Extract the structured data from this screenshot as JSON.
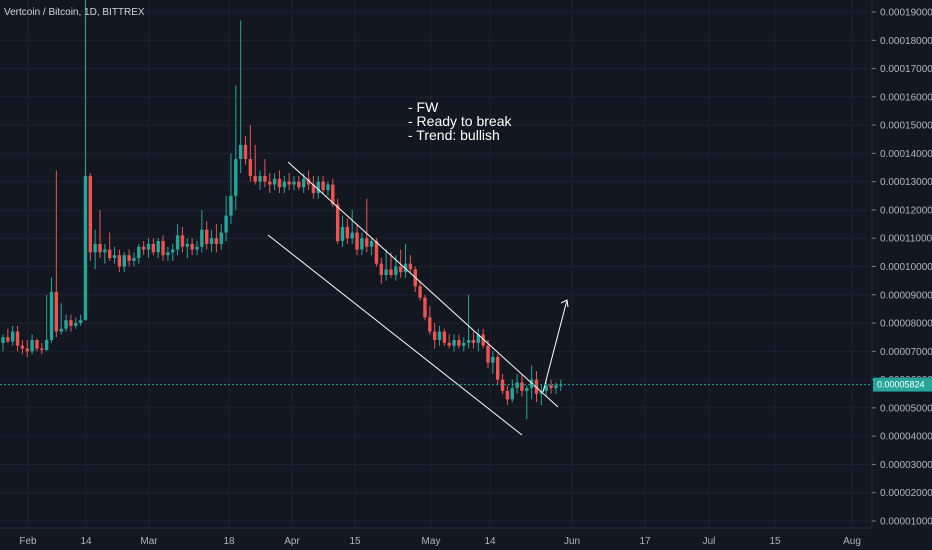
{
  "title": "Vertcoin / Bitcoin, 1D, BITTREX",
  "notes": [
    "- FW",
    "- Ready to break",
    "- Trend: bullish"
  ],
  "colors": {
    "up": "#26a69a",
    "down": "#ef5350",
    "background": "#131722",
    "grid": "#1e2230",
    "line": "#ffffff",
    "price_line": "#26a69a"
  },
  "chart_data": {
    "type": "candlestick",
    "title": "Vertcoin / Bitcoin, 1D, BITTREX",
    "ylim": [
      9e-06,
      0.000195
    ],
    "y_ticks": [
      "0.00001000",
      "0.00002000",
      "0.00003000",
      "0.00004000",
      "0.00005000",
      "0.00006000",
      "0.00007000",
      "0.00008000",
      "0.00009000",
      "0.00010000",
      "0.00011000",
      "0.00012000",
      "0.00013000",
      "0.00014000",
      "0.00015000",
      "0.00016000",
      "0.00017000",
      "0.00018000",
      "0.00019000"
    ],
    "x_ticks": [
      "Feb",
      "14",
      "Mar",
      "18",
      "Apr",
      "15",
      "May",
      "14",
      "Jun",
      "17",
      "Jul",
      "15",
      "Aug"
    ],
    "current_price": "0.00005824",
    "grid": true,
    "candles": [
      {
        "date": "Jan 29",
        "o": 7.3e-05,
        "h": 7.6e-05,
        "l": 7e-05,
        "c": 7.5e-05
      },
      {
        "date": "Jan 30",
        "o": 7.5e-05,
        "h": 7.8e-05,
        "l": 7.3e-05,
        "c": 7.35e-05
      },
      {
        "date": "Jan 31",
        "o": 7.35e-05,
        "h": 7.9e-05,
        "l": 7.2e-05,
        "c": 7.7e-05
      },
      {
        "date": "Feb 1",
        "o": 7.7e-05,
        "h": 7.9e-05,
        "l": 7e-05,
        "c": 7.2e-05
      },
      {
        "date": "Feb 2",
        "o": 7.2e-05,
        "h": 7.4e-05,
        "l": 6.9e-05,
        "c": 7.1e-05
      },
      {
        "date": "Feb 3",
        "o": 7.1e-05,
        "h": 7.4e-05,
        "l": 6.8e-05,
        "c": 7e-05
      },
      {
        "date": "Feb 4",
        "o": 7e-05,
        "h": 7.6e-05,
        "l": 6.9e-05,
        "c": 7.4e-05
      },
      {
        "date": "Feb 5",
        "o": 7.4e-05,
        "h": 7.45e-05,
        "l": 7e-05,
        "c": 7.1e-05
      },
      {
        "date": "Feb 6",
        "o": 7.1e-05,
        "h": 7.3e-05,
        "l": 6.9e-05,
        "c": 7.05e-05
      },
      {
        "date": "Feb 7",
        "o": 7.05e-05,
        "h": 9e-05,
        "l": 7e-05,
        "c": 7.4e-05
      },
      {
        "date": "Feb 8",
        "o": 7.4e-05,
        "h": 9.6e-05,
        "l": 7.3e-05,
        "c": 9.1e-05
      },
      {
        "date": "Feb 9",
        "o": 9.1e-05,
        "h": 0.000134,
        "l": 7.5e-05,
        "c": 7.7e-05
      },
      {
        "date": "Feb 10",
        "o": 7.7e-05,
        "h": 8.7e-05,
        "l": 7.6e-05,
        "c": 7.8e-05
      },
      {
        "date": "Feb 11",
        "o": 7.8e-05,
        "h": 8.3e-05,
        "l": 7.7e-05,
        "c": 8.1e-05
      },
      {
        "date": "Feb 12",
        "o": 8.1e-05,
        "h": 8.3e-05,
        "l": 7.7e-05,
        "c": 7.9e-05
      },
      {
        "date": "Feb 13",
        "o": 7.9e-05,
        "h": 8.2e-05,
        "l": 7.8e-05,
        "c": 8e-05
      },
      {
        "date": "Feb 14",
        "o": 8e-05,
        "h": 8.3e-05,
        "l": 7.9e-05,
        "c": 8.1e-05
      },
      {
        "date": "Feb 15",
        "o": 8.1e-05,
        "h": 0.000196,
        "l": 8.1e-05,
        "c": 0.000132
      },
      {
        "date": "Feb 16",
        "o": 0.000132,
        "h": 0.000133,
        "l": 0.000102,
        "c": 0.000105
      },
      {
        "date": "Feb 17",
        "o": 0.000105,
        "h": 0.000113,
        "l": 9.9e-05,
        "c": 0.000108
      },
      {
        "date": "Feb 18",
        "o": 0.000108,
        "h": 0.00012,
        "l": 0.000103,
        "c": 0.000105
      },
      {
        "date": "Feb 19",
        "o": 0.000105,
        "h": 0.000108,
        "l": 0.000101,
        "c": 0.000106
      },
      {
        "date": "Feb 20",
        "o": 0.000106,
        "h": 0.000112,
        "l": 0.000102,
        "c": 0.000103
      },
      {
        "date": "Feb 21",
        "o": 0.000103,
        "h": 0.000107,
        "l": 0.000101,
        "c": 0.000104
      },
      {
        "date": "Feb 22",
        "o": 0.000104,
        "h": 0.000106,
        "l": 9.8e-05,
        "c": 0.0001
      },
      {
        "date": "Feb 23",
        "o": 0.0001,
        "h": 0.000105,
        "l": 9.8e-05,
        "c": 0.000104
      },
      {
        "date": "Feb 24",
        "o": 0.000104,
        "h": 0.000106,
        "l": 0.0001,
        "c": 0.000102
      },
      {
        "date": "Feb 25",
        "o": 0.000102,
        "h": 0.000105,
        "l": 0.0001,
        "c": 0.000103
      },
      {
        "date": "Feb 26",
        "o": 0.000103,
        "h": 0.000108,
        "l": 0.000101,
        "c": 0.000107
      },
      {
        "date": "Feb 27",
        "o": 0.000107,
        "h": 0.000109,
        "l": 0.000104,
        "c": 0.000106
      },
      {
        "date": "Feb 28",
        "o": 0.000106,
        "h": 0.00011,
        "l": 0.000103,
        "c": 0.000108
      },
      {
        "date": "Mar 1",
        "o": 0.000108,
        "h": 0.00011,
        "l": 0.000104,
        "c": 0.000105
      },
      {
        "date": "Mar 2",
        "o": 0.000105,
        "h": 0.00011,
        "l": 0.000103,
        "c": 0.000109
      },
      {
        "date": "Mar 3",
        "o": 0.000109,
        "h": 0.000111,
        "l": 0.000102,
        "c": 0.000104
      },
      {
        "date": "Mar 4",
        "o": 0.000104,
        "h": 0.000107,
        "l": 0.000102,
        "c": 0.000105
      },
      {
        "date": "Mar 5",
        "o": 0.000105,
        "h": 0.000108,
        "l": 0.000102,
        "c": 0.000106
      },
      {
        "date": "Mar 6",
        "o": 0.000106,
        "h": 0.000115,
        "l": 0.000104,
        "c": 0.000111
      },
      {
        "date": "Mar 7",
        "o": 0.000111,
        "h": 0.000114,
        "l": 0.000105,
        "c": 0.000107
      },
      {
        "date": "Mar 8",
        "o": 0.000107,
        "h": 0.00011,
        "l": 0.000103,
        "c": 0.000108
      },
      {
        "date": "Mar 9",
        "o": 0.000108,
        "h": 0.00011,
        "l": 0.000104,
        "c": 0.000106
      },
      {
        "date": "Mar 10",
        "o": 0.000106,
        "h": 0.000109,
        "l": 0.000104,
        "c": 0.000107
      },
      {
        "date": "Mar 11",
        "o": 0.000107,
        "h": 0.00012,
        "l": 0.000105,
        "c": 0.000113
      },
      {
        "date": "Mar 12",
        "o": 0.000113,
        "h": 0.000116,
        "l": 0.000106,
        "c": 0.000108
      },
      {
        "date": "Mar 13",
        "o": 0.000108,
        "h": 0.000113,
        "l": 0.000105,
        "c": 0.00011
      },
      {
        "date": "Mar 14",
        "o": 0.00011,
        "h": 0.000115,
        "l": 0.000105,
        "c": 0.000108
      },
      {
        "date": "Mar 15",
        "o": 0.000108,
        "h": 0.000115,
        "l": 0.000106,
        "c": 0.000112
      },
      {
        "date": "Mar 16",
        "o": 0.000112,
        "h": 0.000125,
        "l": 0.000109,
        "c": 0.000118
      },
      {
        "date": "Mar 17",
        "o": 0.000118,
        "h": 0.00014,
        "l": 0.000115,
        "c": 0.000125
      },
      {
        "date": "Mar 18",
        "o": 0.000125,
        "h": 0.000164,
        "l": 0.00012,
        "c": 0.000138
      },
      {
        "date": "Mar 19",
        "o": 0.000138,
        "h": 0.000187,
        "l": 0.000133,
        "c": 0.000143
      },
      {
        "date": "Mar 20",
        "o": 0.000143,
        "h": 0.000146,
        "l": 0.000136,
        "c": 0.000138
      },
      {
        "date": "Mar 21",
        "o": 0.000138,
        "h": 0.00015,
        "l": 0.00013,
        "c": 0.000132
      },
      {
        "date": "Mar 22",
        "o": 0.000132,
        "h": 0.000143,
        "l": 0.000129,
        "c": 0.00013
      },
      {
        "date": "Mar 23",
        "o": 0.00013,
        "h": 0.000134,
        "l": 0.000127,
        "c": 0.000132
      },
      {
        "date": "Mar 24",
        "o": 0.000132,
        "h": 0.000138,
        "l": 0.000128,
        "c": 0.00013
      },
      {
        "date": "Mar 25",
        "o": 0.00013,
        "h": 0.000133,
        "l": 0.000126,
        "c": 0.000129
      },
      {
        "date": "Mar 26",
        "o": 0.000129,
        "h": 0.000133,
        "l": 0.000127,
        "c": 0.000131
      },
      {
        "date": "Mar 27",
        "o": 0.000131,
        "h": 0.000134,
        "l": 0.000126,
        "c": 0.000128
      },
      {
        "date": "Mar 28",
        "o": 0.000128,
        "h": 0.000132,
        "l": 0.000126,
        "c": 0.00013
      },
      {
        "date": "Mar 29",
        "o": 0.00013,
        "h": 0.000133,
        "l": 0.000127,
        "c": 0.000129
      },
      {
        "date": "Mar 30",
        "o": 0.000129,
        "h": 0.000132,
        "l": 0.000127,
        "c": 0.00013
      },
      {
        "date": "Mar 31",
        "o": 0.00013,
        "h": 0.000132,
        "l": 0.000127,
        "c": 0.000128
      },
      {
        "date": "Apr 1",
        "o": 0.000128,
        "h": 0.000133,
        "l": 0.000126,
        "c": 0.000131
      },
      {
        "date": "Apr 2",
        "o": 0.000131,
        "h": 0.000134,
        "l": 0.000127,
        "c": 0.000129
      },
      {
        "date": "Apr 3",
        "o": 0.000129,
        "h": 0.000132,
        "l": 0.000124,
        "c": 0.000126
      },
      {
        "date": "Apr 4",
        "o": 0.000126,
        "h": 0.000132,
        "l": 0.000124,
        "c": 0.00013
      },
      {
        "date": "Apr 5",
        "o": 0.00013,
        "h": 0.000132,
        "l": 0.000126,
        "c": 0.000127
      },
      {
        "date": "Apr 6",
        "o": 0.000127,
        "h": 0.00013,
        "l": 0.000125,
        "c": 0.000129
      },
      {
        "date": "Apr 7",
        "o": 0.000129,
        "h": 0.000131,
        "l": 0.000121,
        "c": 0.000122
      },
      {
        "date": "Apr 8",
        "o": 0.000122,
        "h": 0.000124,
        "l": 0.000108,
        "c": 0.000109
      },
      {
        "date": "Apr 9",
        "o": 0.000109,
        "h": 0.000118,
        "l": 0.000107,
        "c": 0.000114
      },
      {
        "date": "Apr 10",
        "o": 0.000114,
        "h": 0.000117,
        "l": 0.000108,
        "c": 0.00011
      },
      {
        "date": "Apr 11",
        "o": 0.00011,
        "h": 0.00012,
        "l": 0.000108,
        "c": 0.000112
      },
      {
        "date": "Apr 12",
        "o": 0.000112,
        "h": 0.000115,
        "l": 0.000104,
        "c": 0.000106
      },
      {
        "date": "Apr 13",
        "o": 0.000106,
        "h": 0.000112,
        "l": 0.000104,
        "c": 0.00011
      },
      {
        "date": "Apr 14",
        "o": 0.00011,
        "h": 0.000124,
        "l": 0.000105,
        "c": 0.000107
      },
      {
        "date": "Apr 15",
        "o": 0.000107,
        "h": 0.00011,
        "l": 0.000104,
        "c": 0.000109
      },
      {
        "date": "Apr 16",
        "o": 0.000109,
        "h": 0.00011,
        "l": 0.0001,
        "c": 0.000101
      },
      {
        "date": "Apr 17",
        "o": 0.000101,
        "h": 0.000103,
        "l": 9.4e-05,
        "c": 9.7e-05
      },
      {
        "date": "Apr 18",
        "o": 9.7e-05,
        "h": 0.000106,
        "l": 9.5e-05,
        "c": 9.9e-05
      },
      {
        "date": "Apr 19",
        "o": 9.9e-05,
        "h": 0.000105,
        "l": 9.6e-05,
        "c": 9.7e-05
      },
      {
        "date": "Apr 20",
        "o": 9.7e-05,
        "h": 0.000104,
        "l": 9.5e-05,
        "c": 0.0001
      },
      {
        "date": "Apr 21",
        "o": 0.0001,
        "h": 0.000106,
        "l": 9.6e-05,
        "c": 9.8e-05
      },
      {
        "date": "Apr 22",
        "o": 9.8e-05,
        "h": 0.000108,
        "l": 9.6e-05,
        "c": 0.000101
      },
      {
        "date": "Apr 23",
        "o": 0.000101,
        "h": 0.000104,
        "l": 9.8e-05,
        "c": 9.9e-05
      },
      {
        "date": "Apr 24",
        "o": 9.9e-05,
        "h": 0.0001,
        "l": 9.1e-05,
        "c": 9.3e-05
      },
      {
        "date": "Apr 25",
        "o": 9.3e-05,
        "h": 9.5e-05,
        "l": 8.8e-05,
        "c": 8.9e-05
      },
      {
        "date": "Apr 26",
        "o": 8.9e-05,
        "h": 9e-05,
        "l": 8.1e-05,
        "c": 8.2e-05
      },
      {
        "date": "Apr 27",
        "o": 8.2e-05,
        "h": 8.6e-05,
        "l": 7.6e-05,
        "c": 7.7e-05
      },
      {
        "date": "Apr 28",
        "o": 7.7e-05,
        "h": 8e-05,
        "l": 7.1e-05,
        "c": 7.4e-05
      },
      {
        "date": "Apr 29",
        "o": 7.4e-05,
        "h": 7.9e-05,
        "l": 7.2e-05,
        "c": 7.7e-05
      },
      {
        "date": "Apr 30",
        "o": 7.7e-05,
        "h": 7.8e-05,
        "l": 7.2e-05,
        "c": 7.3e-05
      },
      {
        "date": "May 1",
        "o": 7.3e-05,
        "h": 7.6e-05,
        "l": 7.1e-05,
        "c": 7.2e-05
      },
      {
        "date": "May 2",
        "o": 7.2e-05,
        "h": 7.6e-05,
        "l": 7e-05,
        "c": 7.4e-05
      },
      {
        "date": "May 3",
        "o": 7.4e-05,
        "h": 7.6e-05,
        "l": 7.1e-05,
        "c": 7.2e-05
      },
      {
        "date": "May 4",
        "o": 7.2e-05,
        "h": 7.5e-05,
        "l": 7e-05,
        "c": 7.3e-05
      },
      {
        "date": "May 5",
        "o": 7.3e-05,
        "h": 9e-05,
        "l": 7.1e-05,
        "c": 7.4e-05
      },
      {
        "date": "May 6",
        "o": 7.4e-05,
        "h": 7.7e-05,
        "l": 7.1e-05,
        "c": 7.3e-05
      },
      {
        "date": "May 7",
        "o": 7.3e-05,
        "h": 7.8e-05,
        "l": 7e-05,
        "c": 7.6e-05
      },
      {
        "date": "May 8",
        "o": 7.6e-05,
        "h": 7.8e-05,
        "l": 7.1e-05,
        "c": 7.2e-05
      },
      {
        "date": "May 9",
        "o": 7.2e-05,
        "h": 7.4e-05,
        "l": 6.4e-05,
        "c": 6.6e-05
      },
      {
        "date": "May 10",
        "o": 6.6e-05,
        "h": 7e-05,
        "l": 6.2e-05,
        "c": 6.8e-05
      },
      {
        "date": "May 11",
        "o": 6.8e-05,
        "h": 6.9e-05,
        "l": 5.8e-05,
        "c": 6e-05
      },
      {
        "date": "May 12",
        "o": 6e-05,
        "h": 6.2e-05,
        "l": 5.5e-05,
        "c": 5.6e-05
      },
      {
        "date": "May 13",
        "o": 5.6e-05,
        "h": 5.8e-05,
        "l": 5.1e-05,
        "c": 5.3e-05
      },
      {
        "date": "May 14",
        "o": 5.3e-05,
        "h": 6e-05,
        "l": 5.2e-05,
        "c": 5.7e-05
      },
      {
        "date": "May 15",
        "o": 5.7e-05,
        "h": 6.2e-05,
        "l": 5.5e-05,
        "c": 5.9e-05
      },
      {
        "date": "May 16",
        "o": 5.9e-05,
        "h": 6.2e-05,
        "l": 5.4e-05,
        "c": 5.6e-05
      },
      {
        "date": "May 17",
        "o": 5.6e-05,
        "h": 5.8e-05,
        "l": 4.6e-05,
        "c": 5.7e-05
      },
      {
        "date": "May 18",
        "o": 5.7e-05,
        "h": 6.5e-05,
        "l": 5.3e-05,
        "c": 6e-05
      },
      {
        "date": "May 19",
        "o": 6e-05,
        "h": 6.3e-05,
        "l": 5.2e-05,
        "c": 5.5e-05
      },
      {
        "date": "May 20",
        "o": 5.5e-05,
        "h": 5.8e-05,
        "l": 5.1e-05,
        "c": 5.6e-05
      },
      {
        "date": "May 21",
        "o": 5.6e-05,
        "h": 6e-05,
        "l": 5.4e-05,
        "c": 5.8e-05
      },
      {
        "date": "May 22",
        "o": 5.8e-05,
        "h": 6e-05,
        "l": 5.5e-05,
        "c": 5.7e-05
      },
      {
        "date": "May 23",
        "o": 5.7e-05,
        "h": 5.9e-05,
        "l": 5.5e-05,
        "c": 5.8e-05
      },
      {
        "date": "May 24",
        "o": 5.8e-05,
        "h": 6e-05,
        "l": 5.6e-05,
        "c": 5.82e-05
      }
    ]
  }
}
